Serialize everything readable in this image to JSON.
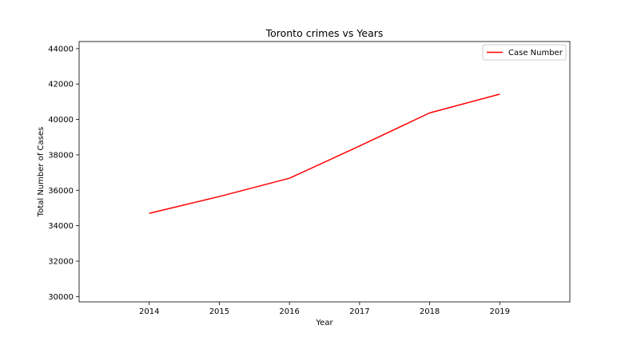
{
  "chart_data": {
    "type": "line",
    "title": "Toronto crimes vs Years",
    "xlabel": "Year",
    "ylabel": "Total Number of Cases",
    "x": [
      2014,
      2015,
      2016,
      2017,
      2018,
      2019
    ],
    "series": [
      {
        "name": "Case Number",
        "color": "#ff0000",
        "values": [
          34700,
          35650,
          36680,
          38500,
          40370,
          41430
        ]
      }
    ],
    "xlim": [
      2013,
      2020
    ],
    "ylim": [
      29700,
      44400
    ],
    "xticks": [
      2014,
      2015,
      2016,
      2017,
      2018,
      2019
    ],
    "yticks": [
      30000,
      32000,
      34000,
      36000,
      38000,
      40000,
      42000,
      44000
    ],
    "grid": false,
    "legend_position": "top-right"
  }
}
